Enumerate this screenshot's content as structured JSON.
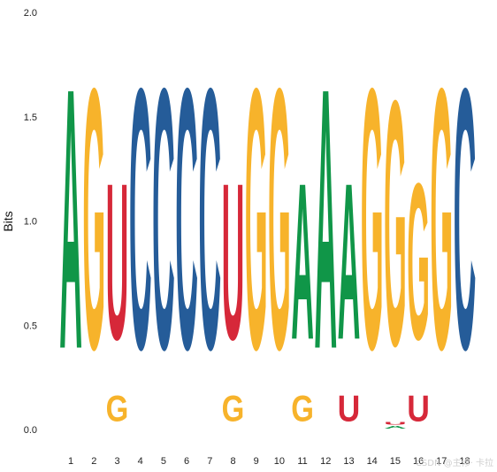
{
  "chart_data": {
    "type": "sequence-logo",
    "title": "",
    "xlabel": "",
    "ylabel": "Bits",
    "ylim": [
      0,
      2
    ],
    "yticks": [
      "0.0",
      "0.5",
      "1.0",
      "1.5",
      "2.0"
    ],
    "positions": [
      "1",
      "2",
      "3",
      "4",
      "5",
      "6",
      "7",
      "8",
      "9",
      "10",
      "11",
      "12",
      "13",
      "14",
      "15",
      "16",
      "17",
      "18"
    ],
    "colors": {
      "A": "#109648",
      "C": "#255C99",
      "G": "#F7B32B",
      "U": "#D62839"
    },
    "columns": [
      [
        {
          "letter": "A",
          "bits": 2.0
        }
      ],
      [
        {
          "letter": "G",
          "bits": 2.0
        }
      ],
      [
        {
          "letter": "G",
          "bits": 0.2
        },
        {
          "letter": "U",
          "bits": 1.2
        }
      ],
      [
        {
          "letter": "C",
          "bits": 2.0
        }
      ],
      [
        {
          "letter": "C",
          "bits": 2.0
        }
      ],
      [
        {
          "letter": "C",
          "bits": 2.0
        }
      ],
      [
        {
          "letter": "C",
          "bits": 2.0
        }
      ],
      [
        {
          "letter": "G",
          "bits": 0.2
        },
        {
          "letter": "U",
          "bits": 1.2
        }
      ],
      [
        {
          "letter": "G",
          "bits": 2.0
        }
      ],
      [
        {
          "letter": "G",
          "bits": 2.0
        }
      ],
      [
        {
          "letter": "G",
          "bits": 0.2
        },
        {
          "letter": "A",
          "bits": 1.2
        }
      ],
      [
        {
          "letter": "A",
          "bits": 2.0
        }
      ],
      [
        {
          "letter": "U",
          "bits": 0.2
        },
        {
          "letter": "A",
          "bits": 1.2
        }
      ],
      [
        {
          "letter": "G",
          "bits": 2.0
        }
      ],
      [
        {
          "letter": "A",
          "bits": 0.02
        },
        {
          "letter": "U",
          "bits": 0.02
        },
        {
          "letter": "G",
          "bits": 1.88
        }
      ],
      [
        {
          "letter": "U",
          "bits": 0.2
        },
        {
          "letter": "G",
          "bits": 1.2
        }
      ],
      [
        {
          "letter": "G",
          "bits": 2.0
        }
      ],
      [
        {
          "letter": "C",
          "bits": 2.0
        }
      ]
    ]
  },
  "watermark": "CSDN @主修· 卡拉"
}
